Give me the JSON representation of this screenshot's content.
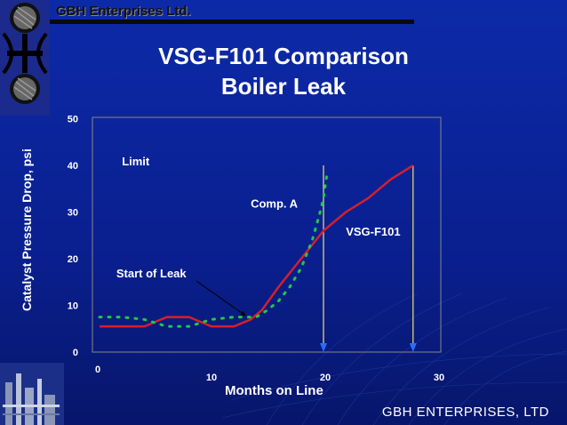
{
  "header": {
    "company": "GBH Enterprises Ltd."
  },
  "slide": {
    "title_line1": "VSG-F101 Comparison",
    "title_line2": "Boiler Leak"
  },
  "footer": {
    "text": "GBH ENTERPRISES, LTD"
  },
  "colors": {
    "background": "#0a1f8f",
    "vsg_line": "#d81e2a",
    "comp_line": "#22c74a",
    "arrow": "#f0e16a",
    "plot_border": "#888888"
  },
  "icons": [
    "gbh-logo-icon",
    "refinery-silhouette-icon"
  ],
  "chart_data": {
    "type": "line",
    "xlabel": "Months on Line",
    "ylabel": "Catalyst Pressure Drop, psi",
    "xlim": [
      0,
      30
    ],
    "ylim": [
      0,
      50
    ],
    "x_ticks": [
      "0",
      "10",
      "20",
      "30"
    ],
    "y_ticks": [
      "0",
      "10",
      "20",
      "30",
      "40",
      "50"
    ],
    "grid": false,
    "series": [
      {
        "name": "VSG-F101",
        "style": "solid",
        "points": [
          [
            0,
            5.5
          ],
          [
            2,
            5.5
          ],
          [
            4,
            5.5
          ],
          [
            6,
            7.5
          ],
          [
            8,
            7.5
          ],
          [
            10,
            5.5
          ],
          [
            12,
            5.5
          ],
          [
            13.5,
            7
          ],
          [
            14.5,
            9
          ],
          [
            16,
            14
          ],
          [
            18,
            20
          ],
          [
            20,
            26
          ],
          [
            22,
            30
          ],
          [
            24,
            33
          ],
          [
            26,
            37
          ],
          [
            28,
            40
          ]
        ]
      },
      {
        "name": "Comp. A",
        "style": "dotted",
        "points": [
          [
            0,
            7.5
          ],
          [
            2,
            7.5
          ],
          [
            4,
            7
          ],
          [
            6,
            5.5
          ],
          [
            8,
            5.5
          ],
          [
            10,
            7
          ],
          [
            12,
            7.5
          ],
          [
            14,
            7.5
          ],
          [
            15,
            9
          ],
          [
            16,
            11
          ],
          [
            17,
            14
          ],
          [
            18,
            18
          ],
          [
            19,
            24
          ],
          [
            19.7,
            30
          ],
          [
            20,
            33
          ],
          [
            20.3,
            38
          ]
        ]
      }
    ],
    "annotations": [
      {
        "text": "Limit",
        "x": 2,
        "y": 40
      },
      {
        "text": "Start of Leak",
        "x": 1.5,
        "y": 16,
        "arrow_to": [
          13,
          7.5
        ]
      },
      {
        "text": "Comp. A",
        "x": 13.5,
        "y": 31
      },
      {
        "text": "VSG-F101",
        "x": 22,
        "y": 25
      }
    ],
    "limit_arrows": [
      {
        "x": 20,
        "y_from": 40,
        "y_to": 0
      },
      {
        "x": 28,
        "y_from": 40,
        "y_to": 0
      }
    ]
  }
}
